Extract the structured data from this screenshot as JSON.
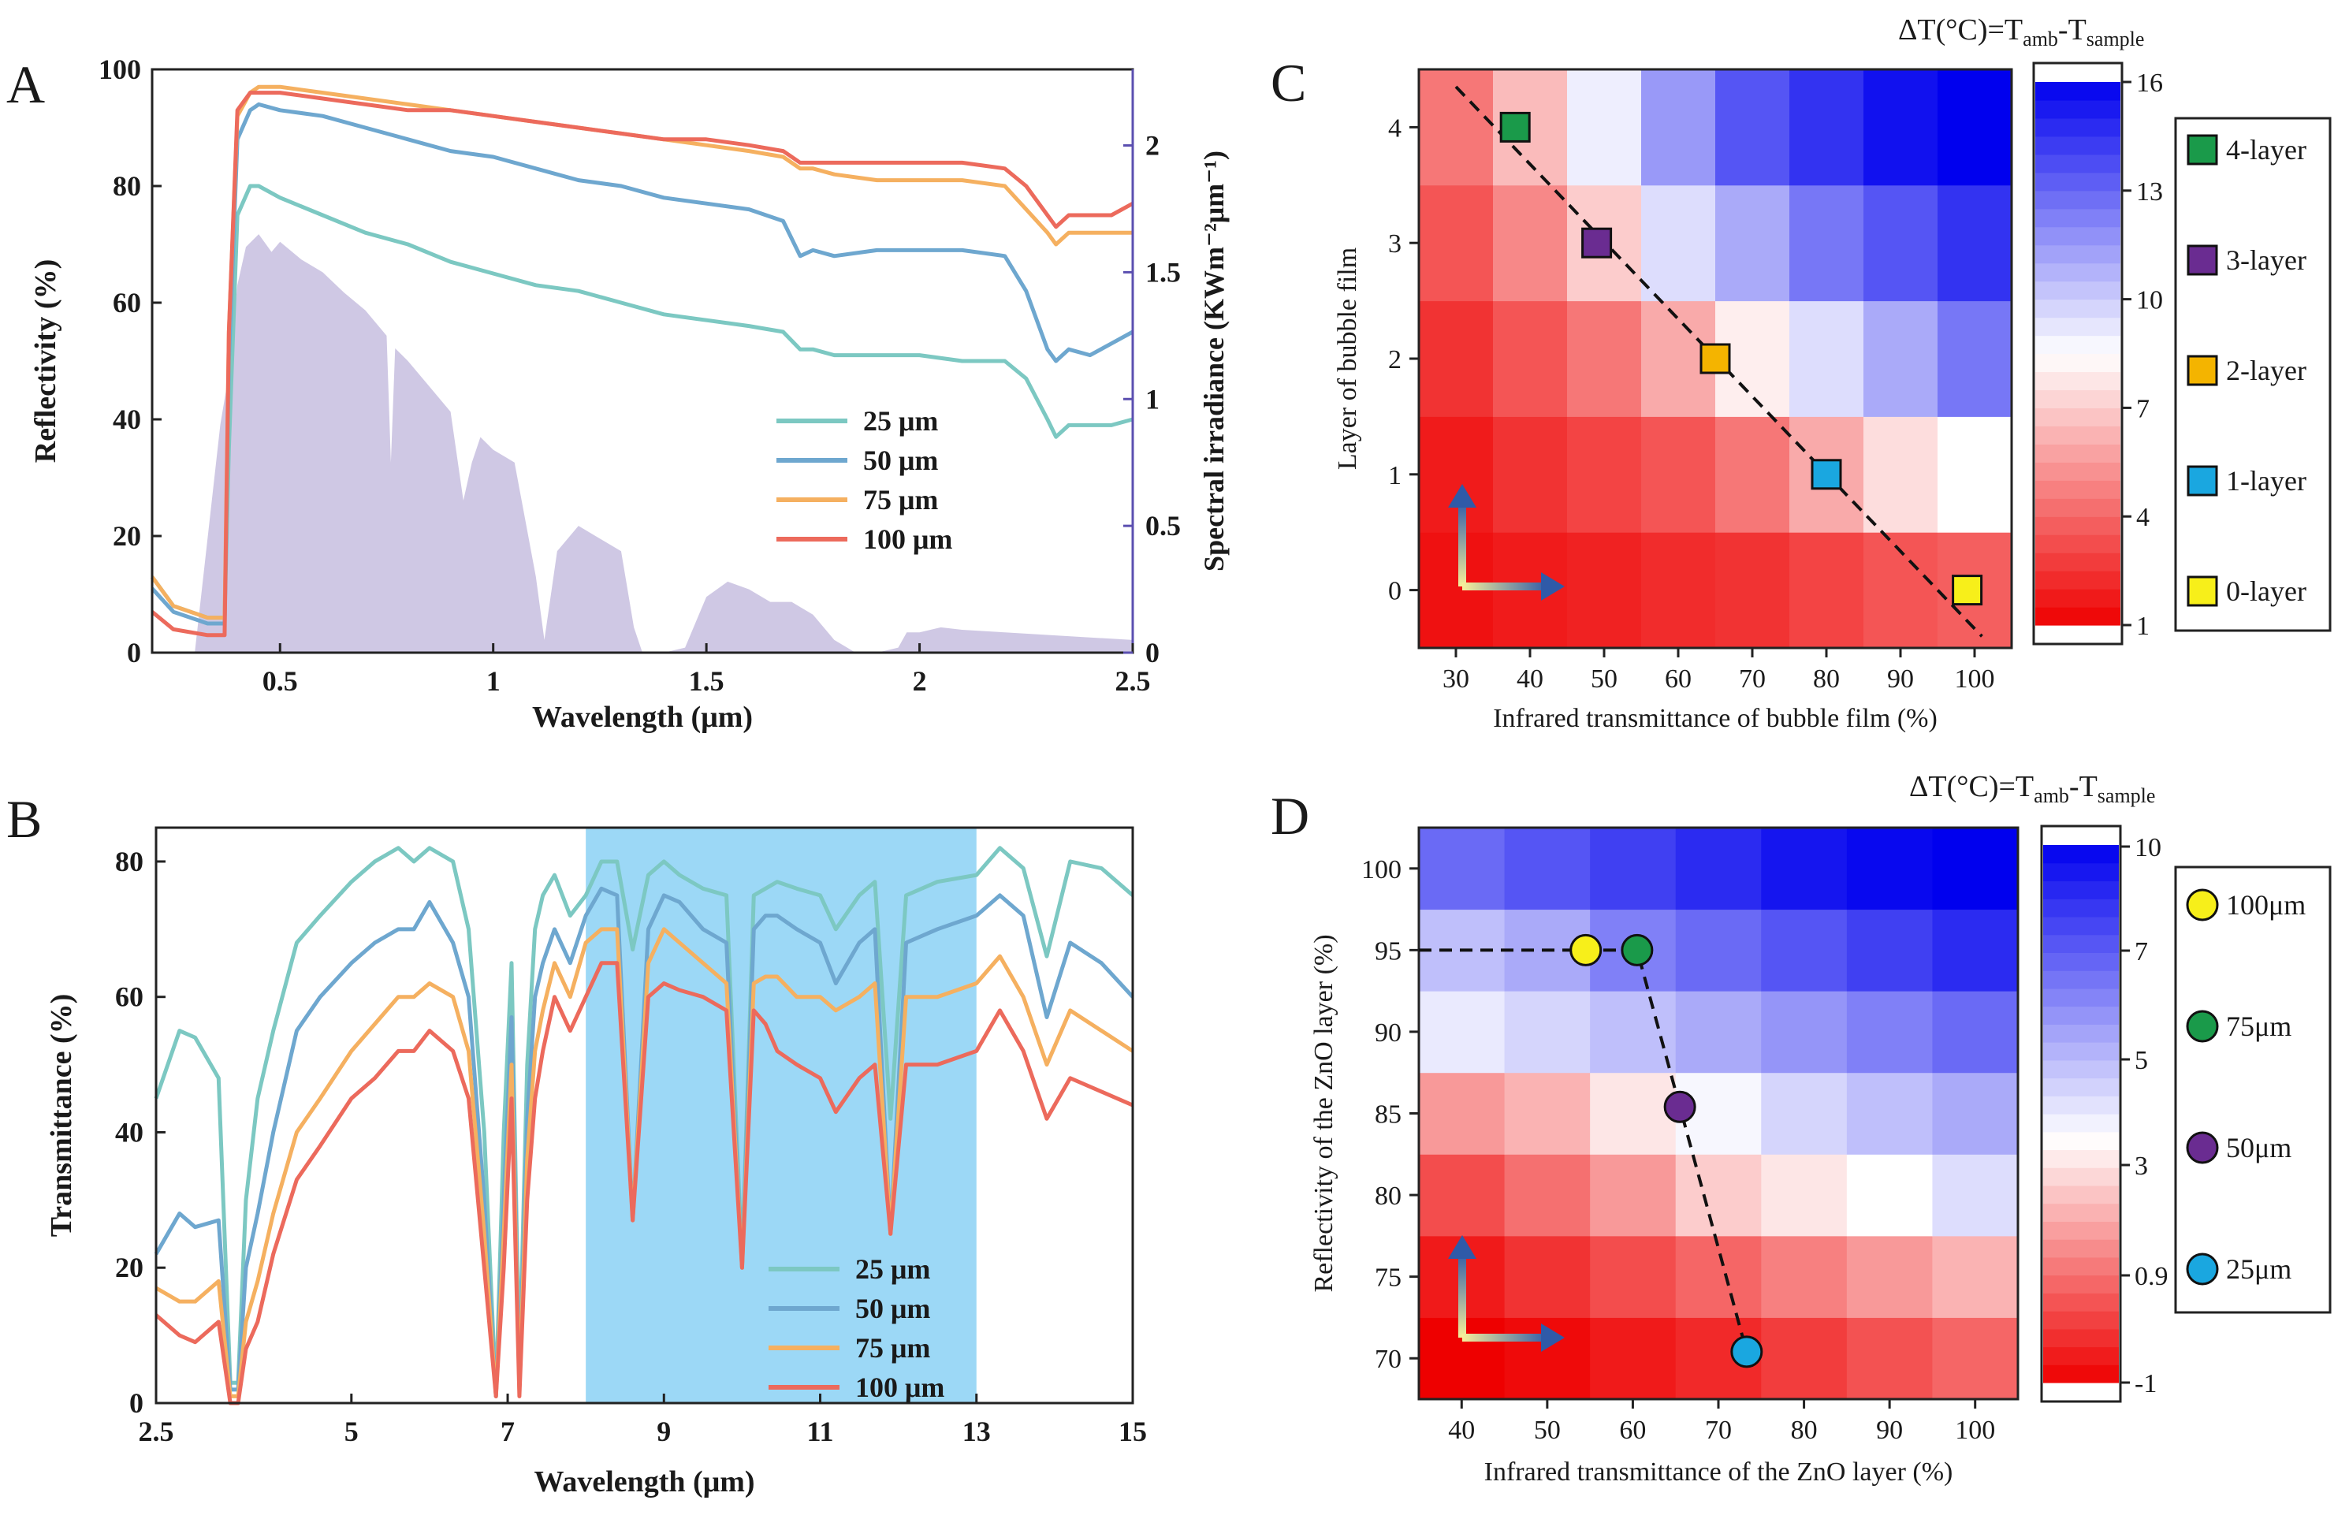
{
  "colors": {
    "s25": "#7cc8c2",
    "s50": "#6ea7cf",
    "s75": "#f5b060",
    "s100": "#ec6a5c",
    "solar": "#cfc8e4",
    "irr_axis": "#5b4fb0",
    "band": "#9cd8f6",
    "red": "#ee0000",
    "white": "#ffffff",
    "blue": "#0000ee"
  },
  "chart_data": [
    {
      "id": "A",
      "type": "line",
      "panel_label": "A",
      "xlabel": "Wavelength (μm)",
      "ylabel": "Reflectivity (%)",
      "y2label": "Spectral irradiance (KWm⁻²μm⁻¹)",
      "xlim": [
        0.2,
        2.5
      ],
      "ylim": [
        0,
        100
      ],
      "y2lim": [
        0,
        2.3
      ],
      "xticks": [
        0.5,
        1,
        1.5,
        2,
        2.5
      ],
      "xtick_labels": [
        "0.5",
        "1",
        "1.5",
        "2",
        "2.5"
      ],
      "yticks": [
        0,
        20,
        40,
        60,
        80,
        100
      ],
      "ytick_labels": [
        "0",
        "20",
        "40",
        "60",
        "80",
        "100"
      ],
      "y2ticks": [
        0,
        0.5,
        1,
        1.5,
        2
      ],
      "y2tick_labels": [
        "0",
        "0.5",
        "1",
        "1.5",
        "2"
      ],
      "legend": [
        "25  μm",
        "50  μm",
        "75  μm",
        "100  μm"
      ],
      "legend_position": "lower-center",
      "solar_irradiance": {
        "x": [
          0.3,
          0.32,
          0.34,
          0.36,
          0.38,
          0.4,
          0.42,
          0.45,
          0.48,
          0.5,
          0.55,
          0.6,
          0.65,
          0.7,
          0.75,
          0.76,
          0.77,
          0.8,
          0.85,
          0.9,
          0.93,
          0.95,
          0.97,
          1.0,
          1.05,
          1.1,
          1.12,
          1.15,
          1.2,
          1.25,
          1.3,
          1.33,
          1.35,
          1.4,
          1.45,
          1.5,
          1.55,
          1.6,
          1.65,
          1.7,
          1.75,
          1.8,
          1.85,
          1.9,
          1.95,
          1.97,
          2.0,
          2.05,
          2.1,
          2.2,
          2.3,
          2.4,
          2.5
        ],
        "values": [
          0.0,
          0.3,
          0.6,
          0.9,
          1.1,
          1.45,
          1.6,
          1.65,
          1.58,
          1.62,
          1.55,
          1.5,
          1.42,
          1.35,
          1.25,
          0.75,
          1.2,
          1.15,
          1.05,
          0.95,
          0.6,
          0.75,
          0.85,
          0.8,
          0.75,
          0.3,
          0.05,
          0.4,
          0.5,
          0.45,
          0.4,
          0.1,
          0.0,
          0.0,
          0.02,
          0.22,
          0.28,
          0.25,
          0.2,
          0.2,
          0.15,
          0.05,
          0.0,
          0.0,
          0.02,
          0.08,
          0.08,
          0.1,
          0.09,
          0.08,
          0.07,
          0.06,
          0.05
        ]
      },
      "series": [
        {
          "name": "25  μm",
          "color_key": "s25",
          "x": [
            0.2,
            0.25,
            0.33,
            0.37,
            0.38,
            0.4,
            0.43,
            0.45,
            0.5,
            0.6,
            0.7,
            0.8,
            0.9,
            1.0,
            1.1,
            1.2,
            1.3,
            1.4,
            1.5,
            1.6,
            1.68,
            1.72,
            1.75,
            1.8,
            1.9,
            2.0,
            2.1,
            2.2,
            2.25,
            2.3,
            2.32,
            2.35,
            2.4,
            2.45,
            2.5
          ],
          "values": [
            13,
            8,
            6,
            6,
            35,
            75,
            80,
            80,
            78,
            75,
            72,
            70,
            67,
            65,
            63,
            62,
            60,
            58,
            57,
            56,
            55,
            52,
            52,
            51,
            51,
            51,
            50,
            50,
            47,
            40,
            37,
            39,
            39,
            39,
            40
          ]
        },
        {
          "name": "50  μm",
          "color_key": "s50",
          "x": [
            0.2,
            0.25,
            0.33,
            0.37,
            0.38,
            0.4,
            0.43,
            0.45,
            0.5,
            0.6,
            0.7,
            0.8,
            0.9,
            1.0,
            1.1,
            1.2,
            1.3,
            1.4,
            1.5,
            1.6,
            1.68,
            1.72,
            1.75,
            1.8,
            1.9,
            2.0,
            2.1,
            2.2,
            2.25,
            2.3,
            2.32,
            2.35,
            2.4,
            2.45,
            2.5
          ],
          "values": [
            11,
            7,
            5,
            5,
            50,
            88,
            93,
            94,
            93,
            92,
            90,
            88,
            86,
            85,
            83,
            81,
            80,
            78,
            77,
            76,
            74,
            68,
            69,
            68,
            69,
            69,
            69,
            68,
            62,
            52,
            50,
            52,
            51,
            53,
            55
          ]
        },
        {
          "name": "75  μm",
          "color_key": "s75",
          "x": [
            0.2,
            0.25,
            0.33,
            0.37,
            0.38,
            0.4,
            0.43,
            0.45,
            0.5,
            0.6,
            0.7,
            0.8,
            0.9,
            1.0,
            1.1,
            1.2,
            1.3,
            1.4,
            1.5,
            1.6,
            1.68,
            1.72,
            1.75,
            1.8,
            1.9,
            2.0,
            2.1,
            2.2,
            2.25,
            2.3,
            2.32,
            2.35,
            2.4,
            2.45,
            2.5
          ],
          "values": [
            13,
            8,
            6,
            6,
            55,
            92,
            96,
            97,
            97,
            96,
            95,
            94,
            93,
            92,
            91,
            90,
            89,
            88,
            87,
            86,
            85,
            83,
            83,
            82,
            81,
            81,
            81,
            80,
            76,
            72,
            70,
            72,
            72,
            72,
            72
          ]
        },
        {
          "name": "100  μm",
          "color_key": "s100",
          "x": [
            0.2,
            0.25,
            0.33,
            0.37,
            0.38,
            0.4,
            0.43,
            0.45,
            0.5,
            0.6,
            0.7,
            0.8,
            0.9,
            1.0,
            1.1,
            1.2,
            1.3,
            1.4,
            1.5,
            1.6,
            1.68,
            1.72,
            1.75,
            1.8,
            1.9,
            2.0,
            2.1,
            2.2,
            2.25,
            2.3,
            2.32,
            2.35,
            2.4,
            2.45,
            2.5
          ],
          "values": [
            7,
            4,
            3,
            3,
            55,
            93,
            96,
            96,
            96,
            95,
            94,
            93,
            93,
            92,
            91,
            90,
            89,
            88,
            88,
            87,
            86,
            84,
            84,
            84,
            84,
            84,
            84,
            83,
            80,
            75,
            73,
            75,
            75,
            75,
            77
          ]
        }
      ]
    },
    {
      "id": "B",
      "type": "line",
      "panel_label": "B",
      "xlabel": "Wavelength (μm)",
      "ylabel": "Transmittance (%)",
      "xlim": [
        2.5,
        15
      ],
      "ylim": [
        0,
        85
      ],
      "xticks": [
        2.5,
        5,
        7,
        9,
        11,
        13,
        15
      ],
      "xtick_labels": [
        "2.5",
        "5",
        "7",
        "9",
        "11",
        "13",
        "15"
      ],
      "yticks": [
        0,
        20,
        40,
        60,
        80
      ],
      "ytick_labels": [
        "0",
        "20",
        "40",
        "60",
        "80"
      ],
      "highlight_band": [
        8,
        13
      ],
      "legend": [
        "25 μm",
        "50 μm",
        "75 μm",
        "100 μm"
      ],
      "legend_position": "lower-center",
      "x": [
        2.5,
        2.8,
        3.0,
        3.3,
        3.45,
        3.55,
        3.65,
        3.8,
        4.0,
        4.3,
        4.6,
        5.0,
        5.3,
        5.6,
        5.8,
        6.0,
        6.3,
        6.5,
        6.7,
        6.85,
        6.95,
        7.05,
        7.15,
        7.25,
        7.35,
        7.45,
        7.6,
        7.8,
        8.0,
        8.2,
        8.4,
        8.6,
        8.8,
        9.0,
        9.2,
        9.5,
        9.8,
        10.0,
        10.15,
        10.3,
        10.45,
        10.7,
        11.0,
        11.2,
        11.5,
        11.7,
        11.9,
        12.1,
        12.5,
        13.0,
        13.3,
        13.6,
        13.9,
        14.2,
        14.6,
        15.0
      ],
      "series": [
        {
          "name": "25 μm",
          "color_key": "s25",
          "values": [
            45,
            55,
            54,
            48,
            3,
            3,
            30,
            45,
            55,
            68,
            72,
            77,
            80,
            82,
            80,
            82,
            80,
            70,
            40,
            1,
            40,
            65,
            5,
            50,
            70,
            75,
            78,
            72,
            75,
            80,
            80,
            67,
            78,
            80,
            78,
            76,
            75,
            21,
            75,
            76,
            77,
            76,
            75,
            70,
            75,
            77,
            42,
            75,
            77,
            78,
            82,
            79,
            66,
            80,
            79,
            75
          ]
        },
        {
          "name": "50 μm",
          "color_key": "s50",
          "values": [
            22,
            28,
            26,
            27,
            2,
            2,
            20,
            28,
            40,
            55,
            60,
            65,
            68,
            70,
            70,
            74,
            68,
            60,
            30,
            1,
            30,
            57,
            3,
            42,
            60,
            65,
            70,
            65,
            72,
            76,
            75,
            27,
            70,
            75,
            74,
            70,
            68,
            20,
            70,
            72,
            72,
            70,
            68,
            62,
            68,
            70,
            25,
            68,
            70,
            72,
            75,
            72,
            57,
            68,
            65,
            60
          ]
        },
        {
          "name": "75 μm",
          "color_key": "s75",
          "values": [
            17,
            15,
            15,
            18,
            1,
            1,
            12,
            18,
            28,
            40,
            45,
            52,
            56,
            60,
            60,
            62,
            60,
            52,
            25,
            1,
            25,
            50,
            2,
            36,
            52,
            58,
            65,
            60,
            68,
            70,
            70,
            27,
            65,
            70,
            68,
            65,
            62,
            20,
            62,
            63,
            63,
            60,
            60,
            58,
            60,
            62,
            25,
            60,
            60,
            62,
            66,
            60,
            50,
            58,
            55,
            52
          ]
        },
        {
          "name": "100 μm",
          "color_key": "s100",
          "values": [
            13,
            10,
            9,
            12,
            0,
            0,
            8,
            12,
            22,
            33,
            38,
            45,
            48,
            52,
            52,
            55,
            52,
            45,
            20,
            1,
            20,
            45,
            1,
            30,
            45,
            52,
            60,
            55,
            60,
            65,
            65,
            27,
            60,
            62,
            61,
            60,
            58,
            20,
            58,
            56,
            52,
            50,
            48,
            43,
            48,
            50,
            25,
            50,
            50,
            52,
            58,
            52,
            42,
            48,
            46,
            44
          ]
        }
      ]
    },
    {
      "id": "C",
      "type": "heatmap",
      "panel_label": "C",
      "title": "ΔT(°C)=T",
      "title_sub1": "amb",
      "title_mid": "-T",
      "title_sub2": "sample",
      "xlabel": "Infrared transmittance of bubble film (%)",
      "ylabel": "Layer of bubble film",
      "x": [
        30,
        40,
        50,
        60,
        70,
        80,
        90,
        100
      ],
      "xtick_labels": [
        "30",
        "40",
        "50",
        "60",
        "70",
        "80",
        "90",
        "100"
      ],
      "y": [
        0,
        1,
        2,
        3,
        4
      ],
      "ytick_labels": [
        "0",
        "1",
        "2",
        "3",
        "4"
      ],
      "z": [
        [
          1.5,
          1.8,
          2.0,
          2.3,
          2.5,
          3.0,
          3.5,
          3.8
        ],
        [
          1.8,
          2.5,
          3.0,
          3.5,
          4.5,
          6.0,
          7.5,
          8.5
        ],
        [
          2.5,
          3.5,
          4.5,
          6.0,
          8.0,
          9.5,
          11.0,
          12.5
        ],
        [
          3.5,
          5.0,
          7.0,
          9.5,
          11.0,
          12.5,
          13.5,
          14.5
        ],
        [
          4.5,
          6.5,
          9.0,
          11.5,
          13.5,
          14.5,
          15.5,
          16.0
        ]
      ],
      "colorbar_min": 1,
      "colorbar_mid": 8.5,
      "colorbar_max": 16,
      "colorbar_ticks": [
        1,
        4,
        7,
        10,
        13,
        16
      ],
      "colorbar_labels": [
        "1",
        "4",
        "7",
        "10",
        "13",
        "16"
      ],
      "markers": [
        {
          "label": "4-layer",
          "x": 38,
          "y": 4,
          "color": "#1a9a4a",
          "shape": "square"
        },
        {
          "label": "3-layer",
          "x": 49,
          "y": 3,
          "color": "#6a2c91",
          "shape": "square"
        },
        {
          "label": "2-layer",
          "x": 65,
          "y": 2,
          "color": "#f4b400",
          "shape": "square"
        },
        {
          "label": "1-layer",
          "x": 80,
          "y": 1,
          "color": "#1aa7e0",
          "shape": "square"
        },
        {
          "label": "0-layer",
          "x": 99,
          "y": 0,
          "color": "#f7ef1a",
          "shape": "square"
        }
      ],
      "trend_line": {
        "x": [
          30,
          101
        ],
        "y": [
          4.35,
          -0.4
        ]
      }
    },
    {
      "id": "D",
      "type": "heatmap",
      "panel_label": "D",
      "title": "ΔT(°C)=T",
      "title_sub1": "amb",
      "title_mid": "-T",
      "title_sub2": "sample",
      "xlabel": "Infrared transmittance of the ZnO layer (%)",
      "ylabel": "Reflectivity of the ZnO layer (%)",
      "x": [
        40,
        50,
        60,
        70,
        80,
        90,
        100
      ],
      "xtick_labels": [
        "40",
        "50",
        "60",
        "70",
        "80",
        "90",
        "100"
      ],
      "y": [
        70,
        75,
        80,
        85,
        90,
        95,
        100
      ],
      "ytick_labels": [
        "70",
        "75",
        "80",
        "85",
        "90",
        "95",
        "100"
      ],
      "z": [
        [
          -1.0,
          -0.8,
          -0.5,
          -0.2,
          0.2,
          0.6,
          1.0
        ],
        [
          -0.5,
          0.0,
          0.5,
          1.0,
          1.5,
          2.0,
          2.5
        ],
        [
          0.5,
          1.2,
          2.0,
          3.0,
          3.5,
          4.0,
          4.8
        ],
        [
          2.0,
          2.5,
          3.5,
          4.2,
          5.0,
          5.5,
          6.0
        ],
        [
          4.5,
          5.0,
          5.5,
          6.0,
          6.5,
          7.0,
          7.5
        ],
        [
          5.5,
          6.0,
          7.0,
          7.5,
          8.0,
          8.5,
          9.0
        ],
        [
          7.5,
          8.0,
          8.5,
          9.0,
          9.5,
          9.8,
          10.0
        ]
      ],
      "colorbar_min": -1,
      "colorbar_mid": 4,
      "colorbar_max": 10,
      "colorbar_ticks": [
        -1,
        0.9,
        3,
        5,
        7,
        10
      ],
      "colorbar_labels": [
        "-1",
        "0.9",
        "3",
        "5",
        "7",
        "10"
      ],
      "markers": [
        {
          "label": "100μm",
          "x": 54.5,
          "y": 95,
          "color": "#f7ef1a",
          "shape": "circle"
        },
        {
          "label": "75μm",
          "x": 60.5,
          "y": 95,
          "color": "#1a9a4a",
          "shape": "circle"
        },
        {
          "label": "50μm",
          "x": 65.5,
          "y": 85.4,
          "color": "#6a2c91",
          "shape": "circle"
        },
        {
          "label": "25μm",
          "x": 73.3,
          "y": 70.4,
          "color": "#1aa7e0",
          "shape": "circle"
        }
      ],
      "trend_line": {
        "x": [
          35,
          54.5,
          60.5,
          65.5,
          73.3
        ],
        "y": [
          95,
          95,
          95,
          85.4,
          70.4
        ]
      }
    }
  ]
}
